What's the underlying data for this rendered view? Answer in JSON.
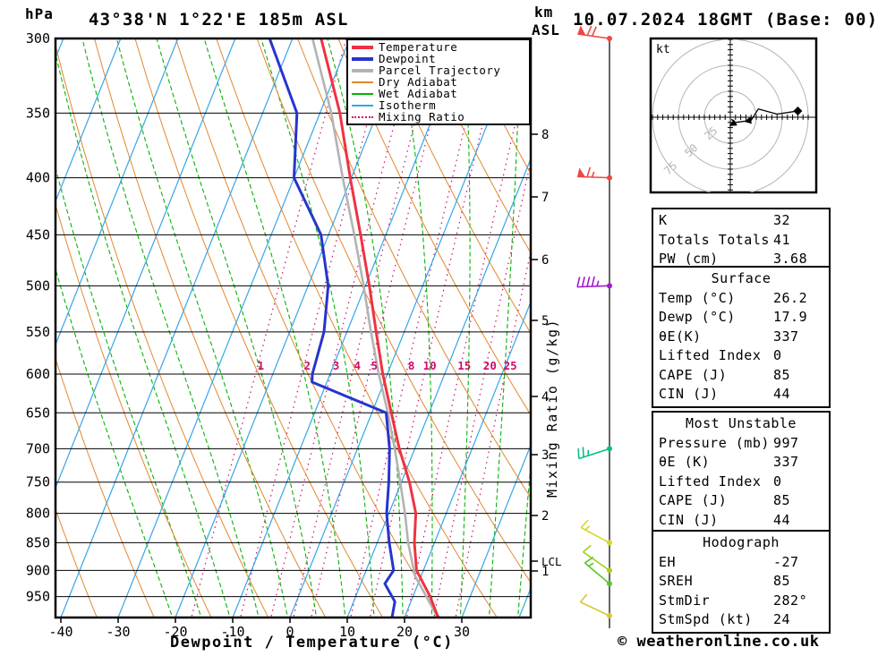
{
  "header": {
    "pressure_unit": "hPa",
    "station_title": "43°38'N 1°22'E 185m ASL",
    "datetime_title": "10.07.2024 18GMT (Base: 00)",
    "altitude_unit_line1": "km",
    "altitude_unit_line2": "ASL"
  },
  "axes": {
    "x_label": "Dewpoint / Temperature (°C)",
    "x_ticks": [
      -40,
      -30,
      -20,
      -10,
      0,
      10,
      20,
      30
    ],
    "pressure_ticks": [
      300,
      350,
      400,
      450,
      500,
      550,
      600,
      650,
      700,
      750,
      800,
      850,
      900,
      950
    ],
    "km_ticks": [
      1,
      2,
      3,
      4,
      5,
      6,
      7,
      8
    ],
    "lcl_label": "LCL",
    "mixing_axis_label": "Mixing Ratio (g/kg)",
    "mixing_ratio_values": [
      1,
      2,
      3,
      4,
      5,
      8,
      10,
      15,
      20,
      25
    ]
  },
  "legend": {
    "items": [
      {
        "label": "Temperature",
        "color": "#ee3340",
        "style": "solid",
        "thick": true
      },
      {
        "label": "Dewpoint",
        "color": "#2634cf",
        "style": "solid",
        "thick": true
      },
      {
        "label": "Parcel Trajectory",
        "color": "#b3b3b3",
        "style": "solid",
        "thick": true
      },
      {
        "label": "Dry Adiabat",
        "color": "#e2882f",
        "style": "solid",
        "thick": false
      },
      {
        "label": "Wet Adiabat",
        "color": "#06b306",
        "style": "solid",
        "thick": false
      },
      {
        "label": "Isotherm",
        "color": "#35a6e8",
        "style": "solid",
        "thick": false
      },
      {
        "label": "Mixing Ratio",
        "color": "#cf0a6d",
        "style": "dotted",
        "thick": false
      }
    ]
  },
  "chart_data": {
    "type": "skewt_sounding",
    "pressure_range_hpa": [
      300,
      1000
    ],
    "temp_axis_range_c": [
      -40,
      40
    ],
    "temperature_profile": [
      {
        "p": 300,
        "t": -35.0
      },
      {
        "p": 350,
        "t": -26.5
      },
      {
        "p": 400,
        "t": -20.2
      },
      {
        "p": 450,
        "t": -14.4
      },
      {
        "p": 500,
        "t": -9.3
      },
      {
        "p": 550,
        "t": -4.9
      },
      {
        "p": 600,
        "t": -0.8
      },
      {
        "p": 650,
        "t": 3.4
      },
      {
        "p": 700,
        "t": 7.3
      },
      {
        "p": 750,
        "t": 11.4
      },
      {
        "p": 800,
        "t": 14.7
      },
      {
        "p": 850,
        "t": 16.5
      },
      {
        "p": 900,
        "t": 18.8
      },
      {
        "p": 950,
        "t": 23.0
      },
      {
        "p": 997,
        "t": 26.2
      }
    ],
    "dewpoint_profile": [
      {
        "p": 300,
        "t": -44.0
      },
      {
        "p": 350,
        "t": -34.0
      },
      {
        "p": 400,
        "t": -30.0
      },
      {
        "p": 450,
        "t": -21.3
      },
      {
        "p": 500,
        "t": -16.5
      },
      {
        "p": 550,
        "t": -14.0
      },
      {
        "p": 600,
        "t": -13.1
      },
      {
        "p": 610,
        "t": -12.6
      },
      {
        "p": 650,
        "t": 2.5
      },
      {
        "p": 700,
        "t": 5.6
      },
      {
        "p": 750,
        "t": 7.8
      },
      {
        "p": 800,
        "t": 9.6
      },
      {
        "p": 850,
        "t": 12.1
      },
      {
        "p": 900,
        "t": 14.8
      },
      {
        "p": 925,
        "t": 14.2
      },
      {
        "p": 960,
        "t": 17.2
      },
      {
        "p": 997,
        "t": 17.9
      }
    ],
    "parcel_profile": [
      {
        "p": 300,
        "t": -36.5
      },
      {
        "p": 350,
        "t": -28.0
      },
      {
        "p": 400,
        "t": -21.5
      },
      {
        "p": 450,
        "t": -15.5
      },
      {
        "p": 500,
        "t": -10.3
      },
      {
        "p": 550,
        "t": -5.8
      },
      {
        "p": 600,
        "t": -1.5
      },
      {
        "p": 650,
        "t": 2.8
      },
      {
        "p": 700,
        "t": 6.5
      },
      {
        "p": 750,
        "t": 9.8
      },
      {
        "p": 800,
        "t": 12.8
      },
      {
        "p": 850,
        "t": 15.4
      },
      {
        "p": 910,
        "t": 18.9
      },
      {
        "p": 997,
        "t": 26.2
      }
    ],
    "wind_barbs": [
      {
        "p": 300,
        "speed_kt": 70,
        "dir_deg": 278,
        "color": "#f04545"
      },
      {
        "p": 400,
        "speed_kt": 65,
        "dir_deg": 272,
        "color": "#f04545"
      },
      {
        "p": 500,
        "speed_kt": 45,
        "dir_deg": 268,
        "color": "#a01ad0"
      },
      {
        "p": 700,
        "speed_kt": 25,
        "dir_deg": 252,
        "color": "#0cbc8c"
      },
      {
        "p": 850,
        "speed_kt": 15,
        "dir_deg": 298,
        "color": "#d6d62a"
      },
      {
        "p": 900,
        "speed_kt": 10,
        "dir_deg": 305,
        "color": "#a8cc25"
      },
      {
        "p": 925,
        "speed_kt": 15,
        "dir_deg": 310,
        "color": "#55c829"
      },
      {
        "p": 997,
        "speed_kt": 10,
        "dir_deg": 295,
        "color": "#d6c832"
      }
    ]
  },
  "hodograph": {
    "unit_label": "kt",
    "ring_labels": [
      "25",
      "50",
      "75"
    ],
    "ring_radii_kt": [
      25,
      50,
      75
    ],
    "trace_uv_kt": [
      [
        1,
        -2
      ],
      [
        5,
        -5
      ],
      [
        20,
        -3
      ],
      [
        27,
        8
      ],
      [
        45,
        3
      ],
      [
        65,
        6
      ]
    ]
  },
  "panels": {
    "indices": {
      "rows": [
        {
          "label": "K",
          "value": "32"
        },
        {
          "label": "Totals Totals",
          "value": "41"
        },
        {
          "label": "PW (cm)",
          "value": "3.68"
        }
      ]
    },
    "surface": {
      "title": "Surface",
      "rows": [
        {
          "label": "Temp (°C)",
          "value": "26.2"
        },
        {
          "label": "Dewp (°C)",
          "value": "17.9"
        },
        {
          "label": "θE(K)",
          "value": "337"
        },
        {
          "label": "Lifted Index",
          "value": "0"
        },
        {
          "label": "CAPE (J)",
          "value": "85"
        },
        {
          "label": "CIN (J)",
          "value": "44"
        }
      ]
    },
    "most_unstable": {
      "title": "Most Unstable",
      "rows": [
        {
          "label": "Pressure (mb)",
          "value": "997"
        },
        {
          "label": "θE (K)",
          "value": "337"
        },
        {
          "label": "Lifted Index",
          "value": "0"
        },
        {
          "label": "CAPE (J)",
          "value": "85"
        },
        {
          "label": "CIN (J)",
          "value": "44"
        }
      ]
    },
    "hodograph_stats": {
      "title": "Hodograph",
      "rows": [
        {
          "label": "EH",
          "value": "-27"
        },
        {
          "label": "SREH",
          "value": "85"
        },
        {
          "label": "StmDir",
          "value": "282°"
        },
        {
          "label": "StmSpd (kt)",
          "value": "24"
        }
      ]
    }
  },
  "footer": {
    "copyright": "© weatheronline.co.uk"
  }
}
